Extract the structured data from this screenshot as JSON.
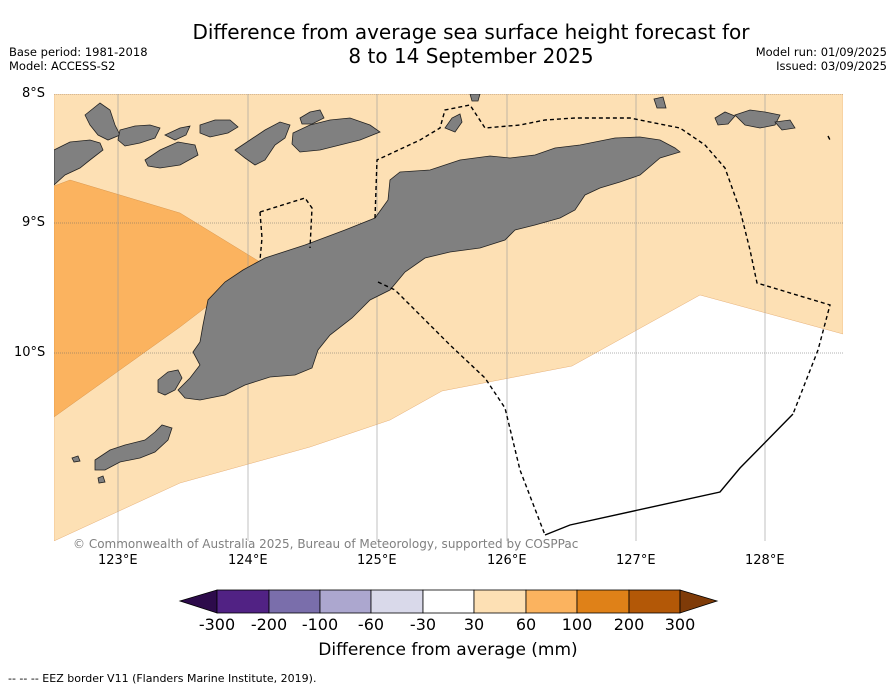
{
  "title": {
    "line1": "Difference from average sea surface height forecast for",
    "line2": "8 to 14 September 2025"
  },
  "meta_left": {
    "base_period": "Base period: 1981-2018",
    "model": "Model: ACCESS-S2"
  },
  "meta_right": {
    "model_run": "Model run: 01/09/2025",
    "issued": "Issued: 03/09/2025"
  },
  "map": {
    "lat_labels": [
      "8°S",
      "9°S",
      "10°S"
    ],
    "lon_labels": [
      "123°E",
      "124°E",
      "125°E",
      "126°E",
      "127°E",
      "128°E"
    ],
    "copyright": "© Commonwealth of Australia 2025, Bureau of Meteorology, supported by COSPPac",
    "colors": {
      "land": "#808080",
      "band_30_60": "#fde0b4",
      "band_60_100": "#fbb35f",
      "no_change": "#ffffff",
      "eez_border": "#000000"
    }
  },
  "colorbar": {
    "label": "Difference from average (mm)",
    "ticks": [
      "-300",
      "-200",
      "-100",
      "-60",
      "-30",
      "30",
      "60",
      "100",
      "200",
      "300"
    ],
    "colors": [
      "#2d0b4b",
      "#512284",
      "#7a6eab",
      "#aca7cf",
      "#d9d9ea",
      "#ffffff",
      "#fde0b4",
      "#fbb35f",
      "#df8118",
      "#b35807",
      "#7f3b08"
    ]
  },
  "footnote": "--  --  -- EEZ border V11 (Flanders Marine Institute, 2019)."
}
